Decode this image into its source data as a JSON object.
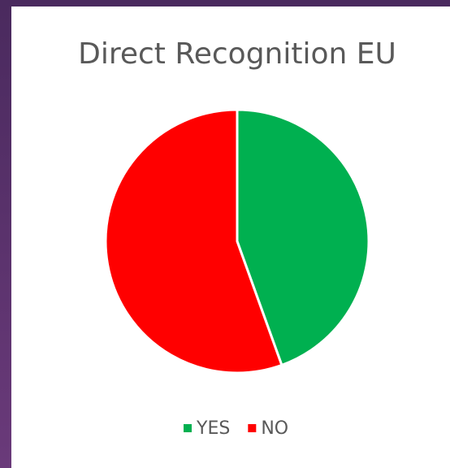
{
  "chart_data": {
    "type": "pie",
    "title": "Direct Recognition EU",
    "categories": [
      "YES",
      "NO"
    ],
    "values": [
      44.5,
      55.5
    ],
    "colors": [
      "#00b050",
      "#ff0000"
    ],
    "legend": "bottom"
  }
}
